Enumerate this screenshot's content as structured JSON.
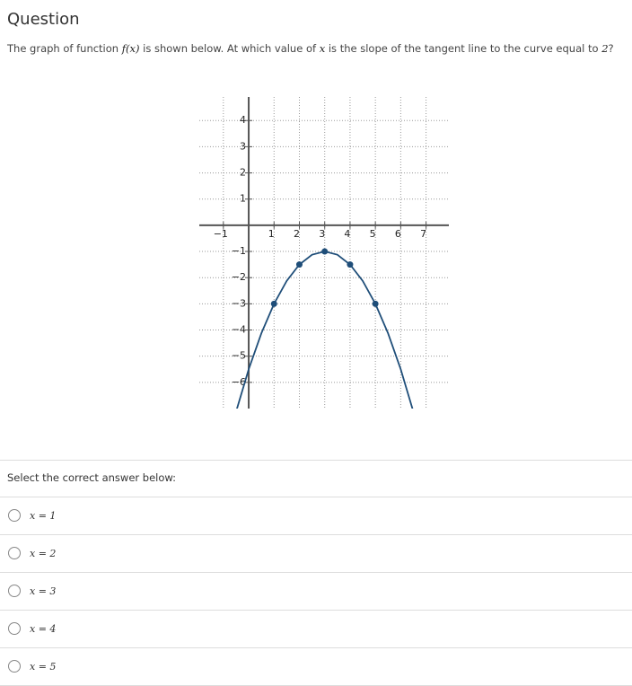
{
  "header": {
    "title": "Question"
  },
  "prompt_parts": [
    "The graph of function ",
    "f(x)",
    " is shown below. At which value of ",
    "x",
    " is the slope of the tangent line to the curve equal to ",
    "2",
    "?"
  ],
  "chart_data": {
    "type": "line",
    "xlim": [
      -1.95,
      7.9
    ],
    "ylim": [
      -7,
      4.9
    ],
    "xticks": [
      {
        "value": -1,
        "label": "−1"
      },
      1,
      2,
      3,
      4,
      5,
      6,
      7
    ],
    "yticks": [
      4,
      3,
      2,
      1,
      {
        "value": -1,
        "label": "−1"
      },
      {
        "value": -2,
        "label": "−2"
      },
      {
        "value": -3,
        "label": "−3"
      },
      {
        "value": -4,
        "label": "−4"
      },
      {
        "value": -5,
        "label": "−5"
      },
      {
        "value": -6,
        "label": "−6"
      }
    ],
    "grid": true,
    "color": "#1f4e79",
    "curve": {
      "x": [
        -0.5,
        0,
        0.5,
        1,
        1.5,
        2,
        2.5,
        3,
        3.5,
        4,
        4.5,
        5,
        5.5,
        6,
        6.5
      ],
      "values": [
        -7.125,
        -5.5,
        -4.125,
        -3,
        -2.125,
        -1.5,
        -1.125,
        -1,
        -1.125,
        -1.5,
        -2.125,
        -3,
        -4.125,
        -5.5,
        -7.125
      ]
    },
    "points": {
      "x": [
        1,
        2,
        3,
        4,
        5
      ],
      "values": [
        -3,
        -1.5,
        -1,
        -1.5,
        -3
      ]
    }
  },
  "instruction": "Select the correct answer below:",
  "options": [
    "x = 1",
    "x = 2",
    "x = 3",
    "x = 4",
    "x = 5"
  ]
}
